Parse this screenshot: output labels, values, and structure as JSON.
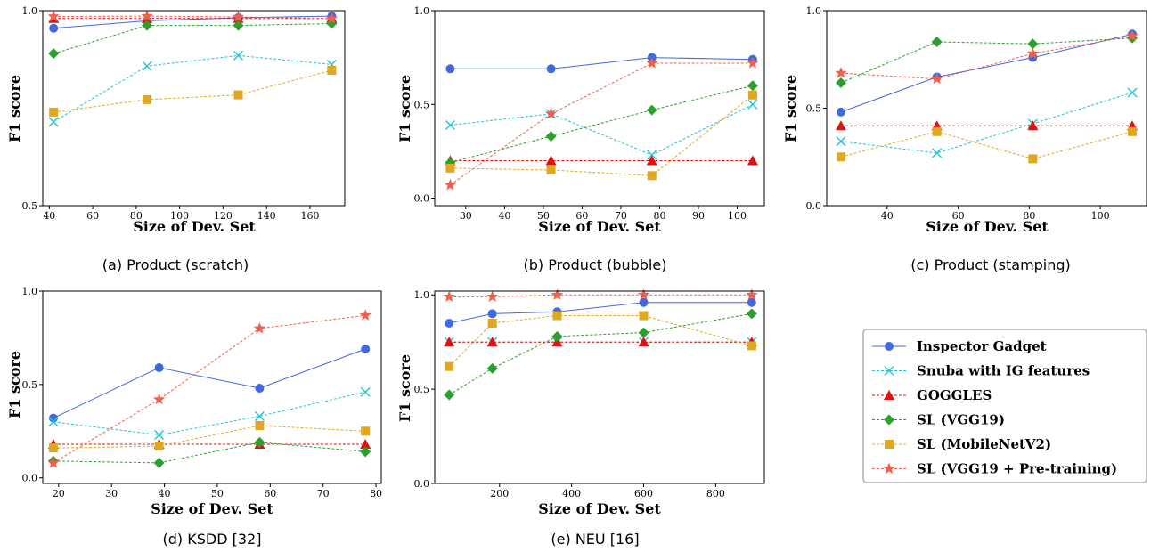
{
  "colors": {
    "Inspector Gadget": "#4169e1",
    "Snuba with IG features": "#22c4d4",
    "GOGGLES": "#e01010",
    "SL (VGG19)": "#2ca02c",
    "SL (MobileNetV2)": "#e0a820",
    "SL (VGG19 + Pre-training)": "#f06050"
  },
  "legend": {
    "placement": "right-bottom",
    "entries": [
      {
        "label": "Inspector Gadget",
        "marker": "circle",
        "dash": false
      },
      {
        "label": "Snuba with IG features",
        "marker": "x",
        "dash": true
      },
      {
        "label": "GOGGLES",
        "marker": "triangle",
        "dash": true
      },
      {
        "label": "SL (VGG19)",
        "marker": "diamond",
        "dash": true
      },
      {
        "label": "SL (MobileNetV2)",
        "marker": "square",
        "dash": true
      },
      {
        "label": "SL (VGG19 + Pre-training)",
        "marker": "star",
        "dash": true
      }
    ]
  },
  "chart_data": [
    {
      "type": "line",
      "caption": "(a) Product (scratch)",
      "xlabel": "Size of Dev. Set",
      "ylabel": "F1 score",
      "xlim": [
        37,
        176
      ],
      "ylim": [
        0.5,
        1.0
      ],
      "xticks": [
        40,
        60,
        80,
        100,
        120,
        140,
        160
      ],
      "yticks": [
        0.5,
        1.0
      ],
      "yticklabels": [
        "0.5",
        "1.0"
      ],
      "series": [
        {
          "name": "Inspector Gadget",
          "x": [
            42,
            85,
            127,
            170
          ],
          "y": [
            0.955,
            0.974,
            0.982,
            0.986
          ]
        },
        {
          "name": "Snuba with IG features",
          "x": [
            42,
            85,
            127,
            170
          ],
          "y": [
            0.715,
            0.858,
            0.885,
            0.862
          ]
        },
        {
          "name": "GOGGLES",
          "x": [
            42,
            85,
            127,
            170
          ],
          "y": [
            0.98,
            0.98,
            0.98,
            0.98
          ]
        },
        {
          "name": "SL (VGG19)",
          "x": [
            42,
            85,
            127,
            170
          ],
          "y": [
            0.89,
            0.962,
            0.962,
            0.967
          ]
        },
        {
          "name": "SL (MobileNetV2)",
          "x": [
            42,
            85,
            127,
            170
          ],
          "y": [
            0.74,
            0.772,
            0.784,
            0.847
          ]
        },
        {
          "name": "SL (VGG19 + Pre-training)",
          "x": [
            42,
            85,
            127,
            170
          ],
          "y": [
            0.985,
            0.986,
            0.984,
            0.98
          ]
        }
      ]
    },
    {
      "type": "line",
      "caption": "(b) Product (bubble)",
      "xlabel": "Size of Dev. Set",
      "ylabel": "F1 score",
      "xlim": [
        22,
        107
      ],
      "ylim": [
        -0.04,
        1.0
      ],
      "xticks": [
        30,
        40,
        50,
        60,
        70,
        80,
        90,
        100
      ],
      "yticks": [
        0.0,
        0.5,
        1.0
      ],
      "yticklabels": [
        "0.0",
        "0.5",
        "1.0"
      ],
      "series": [
        {
          "name": "Inspector Gadget",
          "x": [
            26,
            52,
            78,
            104
          ],
          "y": [
            0.69,
            0.69,
            0.75,
            0.74
          ]
        },
        {
          "name": "Snuba with IG features",
          "x": [
            26,
            52,
            78,
            104
          ],
          "y": [
            0.39,
            0.45,
            0.23,
            0.5
          ]
        },
        {
          "name": "GOGGLES",
          "x": [
            26,
            52,
            78,
            104
          ],
          "y": [
            0.2,
            0.2,
            0.2,
            0.2
          ]
        },
        {
          "name": "SL (VGG19)",
          "x": [
            26,
            52,
            78,
            104
          ],
          "y": [
            0.19,
            0.33,
            0.47,
            0.6
          ]
        },
        {
          "name": "SL (MobileNetV2)",
          "x": [
            26,
            52,
            78,
            104
          ],
          "y": [
            0.16,
            0.15,
            0.12,
            0.55
          ]
        },
        {
          "name": "SL (VGG19 + Pre-training)",
          "x": [
            26,
            52,
            78,
            104
          ],
          "y": [
            0.07,
            0.45,
            0.72,
            0.72
          ]
        }
      ]
    },
    {
      "type": "line",
      "caption": "(c) Product (stamping)",
      "xlabel": "Size of Dev. Set",
      "ylabel": "F1 score",
      "xlim": [
        23,
        113
      ],
      "ylim": [
        0.0,
        1.0
      ],
      "xticks": [
        40,
        60,
        80,
        100
      ],
      "yticks": [
        0.0,
        0.5,
        1.0
      ],
      "yticklabels": [
        "0.0",
        "0.5",
        "1.0"
      ],
      "series": [
        {
          "name": "Inspector Gadget",
          "x": [
            27,
            54,
            81,
            109
          ],
          "y": [
            0.48,
            0.66,
            0.76,
            0.88
          ]
        },
        {
          "name": "Snuba with IG features",
          "x": [
            27,
            54,
            81,
            109
          ],
          "y": [
            0.33,
            0.27,
            0.42,
            0.58
          ]
        },
        {
          "name": "GOGGLES",
          "x": [
            27,
            54,
            81,
            109
          ],
          "y": [
            0.41,
            0.41,
            0.41,
            0.41
          ]
        },
        {
          "name": "SL (VGG19)",
          "x": [
            27,
            54,
            81,
            109
          ],
          "y": [
            0.63,
            0.84,
            0.83,
            0.86
          ]
        },
        {
          "name": "SL (MobileNetV2)",
          "x": [
            27,
            54,
            81,
            109
          ],
          "y": [
            0.25,
            0.38,
            0.24,
            0.38
          ]
        },
        {
          "name": "SL (VGG19 + Pre-training)",
          "x": [
            27,
            54,
            81,
            109
          ],
          "y": [
            0.68,
            0.65,
            0.78,
            0.87
          ]
        }
      ]
    },
    {
      "type": "line",
      "caption": "(d) KSDD [32]",
      "xlabel": "Size of Dev. Set",
      "ylabel": "F1 score",
      "xlim": [
        17,
        81
      ],
      "ylim": [
        -0.03,
        1.0
      ],
      "xticks": [
        20,
        30,
        40,
        50,
        60,
        70,
        80
      ],
      "yticks": [
        0.0,
        0.5,
        1.0
      ],
      "yticklabels": [
        "0.0",
        "0.5",
        "1.0"
      ],
      "series": [
        {
          "name": "Inspector Gadget",
          "x": [
            19,
            39,
            58,
            78
          ],
          "y": [
            0.32,
            0.59,
            0.48,
            0.69
          ]
        },
        {
          "name": "Snuba with IG features",
          "x": [
            19,
            39,
            58,
            78
          ],
          "y": [
            0.3,
            0.23,
            0.33,
            0.46
          ]
        },
        {
          "name": "GOGGLES",
          "x": [
            19,
            39,
            58,
            78
          ],
          "y": [
            0.18,
            0.18,
            0.18,
            0.18
          ]
        },
        {
          "name": "SL (VGG19)",
          "x": [
            19,
            39,
            58,
            78
          ],
          "y": [
            0.09,
            0.08,
            0.19,
            0.14
          ]
        },
        {
          "name": "SL (MobileNetV2)",
          "x": [
            19,
            39,
            58,
            78
          ],
          "y": [
            0.16,
            0.17,
            0.28,
            0.25
          ]
        },
        {
          "name": "SL (VGG19 + Pre-training)",
          "x": [
            19,
            39,
            58,
            78
          ],
          "y": [
            0.08,
            0.42,
            0.8,
            0.87
          ]
        }
      ]
    },
    {
      "type": "line",
      "caption": "(e) NEU [16]",
      "xlabel": "Size of Dev. Set",
      "ylabel": "F1 score",
      "xlim": [
        20,
        935
      ],
      "ylim": [
        0.0,
        1.02
      ],
      "xticks": [
        200,
        400,
        600,
        800
      ],
      "yticks": [
        0.0,
        0.5,
        1.0
      ],
      "yticklabels": [
        "0.0",
        "0.5",
        "1.0"
      ],
      "series": [
        {
          "name": "Inspector Gadget",
          "x": [
            60,
            180,
            360,
            600,
            900
          ],
          "y": [
            0.85,
            0.9,
            0.91,
            0.96,
            0.96
          ]
        },
        {
          "name": "Snuba with IG features",
          "x": [
            60,
            180,
            360,
            600,
            900
          ],
          "y": [
            0.75,
            0.75,
            0.75,
            0.75,
            0.75
          ]
        },
        {
          "name": "GOGGLES",
          "x": [
            60,
            180,
            360,
            600,
            900
          ],
          "y": [
            0.75,
            0.75,
            0.75,
            0.75,
            0.75
          ]
        },
        {
          "name": "SL (VGG19)",
          "x": [
            60,
            180,
            360,
            600,
            900
          ],
          "y": [
            0.47,
            0.61,
            0.78,
            0.8,
            0.9
          ]
        },
        {
          "name": "SL (MobileNetV2)",
          "x": [
            60,
            180,
            360,
            600,
            900
          ],
          "y": [
            0.62,
            0.85,
            0.89,
            0.89,
            0.73
          ]
        },
        {
          "name": "SL (VGG19 + Pre-training)",
          "x": [
            60,
            180,
            360,
            600,
            900
          ],
          "y": [
            0.99,
            0.99,
            1.0,
            1.0,
            1.0
          ]
        }
      ]
    }
  ]
}
